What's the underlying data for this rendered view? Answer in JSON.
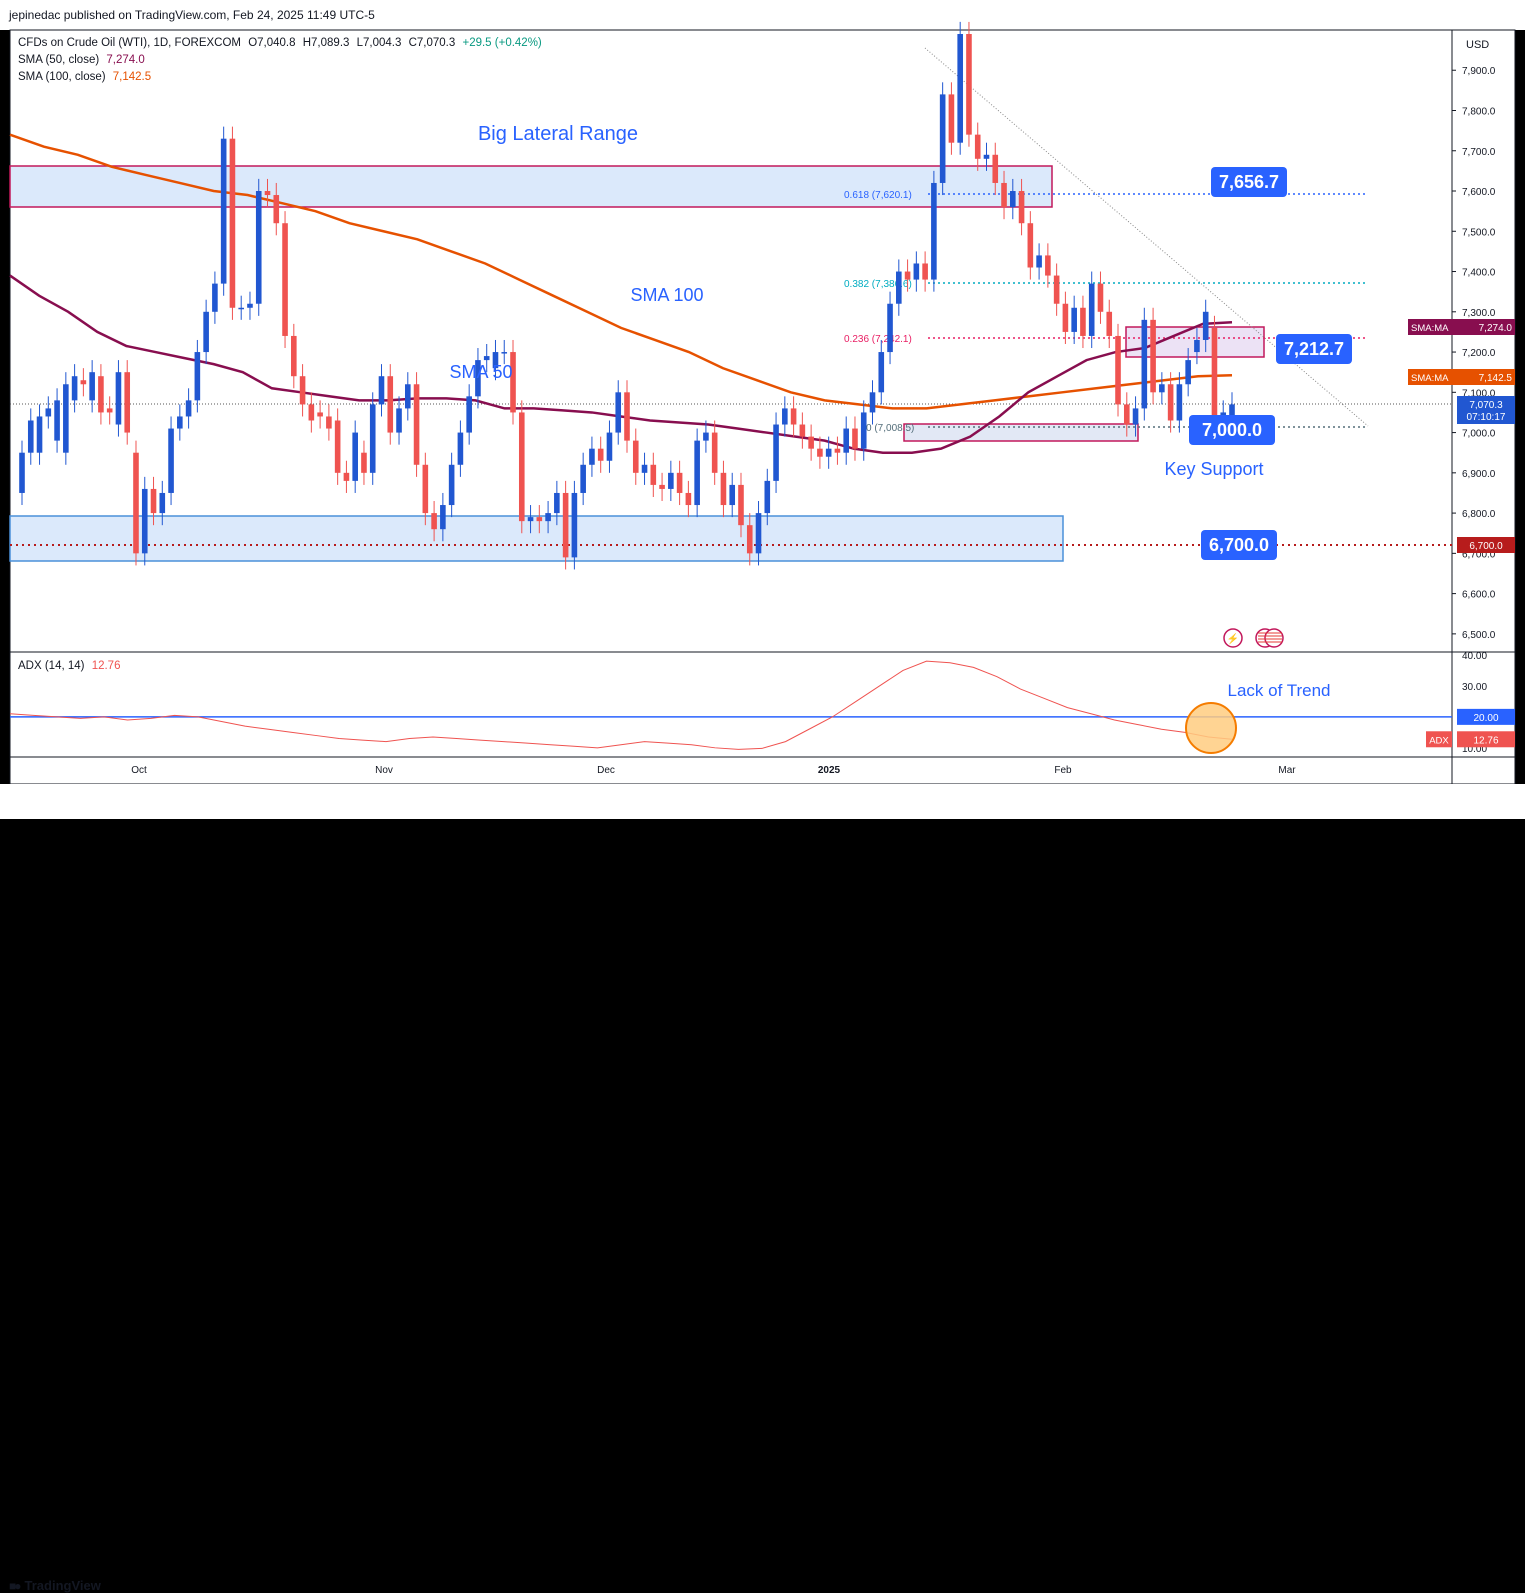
{
  "publisher": "jepinedac published on TradingView.com, Feb 24, 2025 11:49 UTC-5",
  "brand": "TradingView",
  "brand_icon": "tradingview-logo-icon",
  "currency": "USD",
  "legend": {
    "symbol": "CFDs on Crude Oil (WTI), 1D, FOREXCOM",
    "open": "O7,040.8",
    "high": "H7,089.3",
    "low": "L7,004.3",
    "close": "C7,070.3",
    "change": "+29.5 (+0.42%)",
    "sma50_label": "SMA (50, close)",
    "sma50_value": "7,274.0",
    "sma100_label": "SMA (100, close)",
    "sma100_value": "7,142.5"
  },
  "adx_legend": {
    "label": "ADX (14, 14)",
    "value": "12.76"
  },
  "chart_data": {
    "type": "candlestick",
    "price_axis": {
      "min": 6450,
      "max": 7990,
      "ticks": [
        "7,900.0",
        "7,800.0",
        "7,700.0",
        "7,600.0",
        "7,500.0",
        "7,400.0",
        "7,300.0",
        "7,200.0",
        "7,100.0",
        "7,000.0",
        "6,900.0",
        "6,800.0",
        "6,700.0",
        "6,600.0",
        "6,500.0"
      ]
    },
    "time_axis": {
      "labels": [
        "Oct",
        "Nov",
        "Dec",
        "2025",
        "Feb",
        "Mar"
      ]
    },
    "candles": [
      [
        6850,
        6950
      ],
      [
        6950,
        7030
      ],
      [
        6950,
        7040
      ],
      [
        7040,
        7060
      ],
      [
        6980,
        7080
      ],
      [
        6950,
        7120
      ],
      [
        7080,
        7140
      ],
      [
        7130,
        7120
      ],
      [
        7080,
        7150
      ],
      [
        7140,
        7050
      ],
      [
        7060,
        7050
      ],
      [
        7020,
        7150
      ],
      [
        7150,
        7000
      ],
      [
        6950,
        6700
      ],
      [
        6700,
        6860
      ],
      [
        6860,
        6800
      ],
      [
        6800,
        6850
      ],
      [
        6850,
        7010
      ],
      [
        7010,
        7040
      ],
      [
        7040,
        7080
      ],
      [
        7080,
        7200
      ],
      [
        7200,
        7300
      ],
      [
        7300,
        7370
      ],
      [
        7370,
        7730
      ],
      [
        7730,
        7310
      ],
      [
        7310,
        7310
      ],
      [
        7310,
        7320
      ],
      [
        7320,
        7600
      ],
      [
        7600,
        7590
      ],
      [
        7590,
        7520
      ],
      [
        7520,
        7240
      ],
      [
        7240,
        7140
      ],
      [
        7140,
        7070
      ],
      [
        7070,
        7030
      ],
      [
        7050,
        7040
      ],
      [
        7040,
        7010
      ],
      [
        7030,
        6900
      ],
      [
        6900,
        6880
      ],
      [
        6880,
        7000
      ],
      [
        6950,
        6900
      ],
      [
        6900,
        7070
      ],
      [
        7070,
        7140
      ],
      [
        7140,
        7000
      ],
      [
        7000,
        7060
      ],
      [
        7060,
        7120
      ],
      [
        7120,
        6920
      ],
      [
        6920,
        6800
      ],
      [
        6800,
        6760
      ],
      [
        6760,
        6820
      ],
      [
        6820,
        6920
      ],
      [
        6920,
        7000
      ],
      [
        7000,
        7090
      ],
      [
        7090,
        7180
      ],
      [
        7180,
        7190
      ],
      [
        7160,
        7200
      ],
      [
        7200,
        7200
      ],
      [
        7200,
        7050
      ],
      [
        7050,
        6780
      ],
      [
        6780,
        6790
      ],
      [
        6790,
        6780
      ],
      [
        6780,
        6800
      ],
      [
        6800,
        6850
      ],
      [
        6850,
        6690
      ],
      [
        6690,
        6850
      ],
      [
        6850,
        6920
      ],
      [
        6920,
        6960
      ],
      [
        6960,
        6930
      ],
      [
        6930,
        7000
      ],
      [
        7000,
        7100
      ],
      [
        7100,
        6980
      ],
      [
        6980,
        6900
      ],
      [
        6900,
        6920
      ],
      [
        6920,
        6870
      ],
      [
        6870,
        6860
      ],
      [
        6860,
        6900
      ],
      [
        6900,
        6850
      ],
      [
        6850,
        6820
      ],
      [
        6820,
        6980
      ],
      [
        6980,
        7000
      ],
      [
        7000,
        6900
      ],
      [
        6900,
        6820
      ],
      [
        6820,
        6870
      ],
      [
        6870,
        6770
      ],
      [
        6770,
        6700
      ],
      [
        6700,
        6800
      ],
      [
        6800,
        6880
      ],
      [
        6880,
        7020
      ],
      [
        7020,
        7060
      ],
      [
        7060,
        7020
      ],
      [
        7020,
        6990
      ],
      [
        6990,
        6960
      ],
      [
        6960,
        6940
      ],
      [
        6940,
        6960
      ],
      [
        6960,
        6950
      ],
      [
        6950,
        7010
      ],
      [
        7010,
        6960
      ],
      [
        6960,
        7050
      ],
      [
        7050,
        7100
      ],
      [
        7100,
        7200
      ],
      [
        7200,
        7320
      ],
      [
        7320,
        7400
      ],
      [
        7400,
        7380
      ],
      [
        7380,
        7420
      ],
      [
        7420,
        7380
      ],
      [
        7380,
        7620
      ],
      [
        7620,
        7840
      ],
      [
        7840,
        7720
      ],
      [
        7720,
        7990
      ],
      [
        7990,
        7740
      ],
      [
        7740,
        7680
      ],
      [
        7680,
        7690
      ],
      [
        7690,
        7620
      ],
      [
        7620,
        7560
      ],
      [
        7560,
        7600
      ],
      [
        7600,
        7520
      ],
      [
        7520,
        7410
      ],
      [
        7410,
        7440
      ],
      [
        7440,
        7390
      ],
      [
        7390,
        7320
      ],
      [
        7320,
        7250
      ],
      [
        7250,
        7310
      ],
      [
        7310,
        7240
      ],
      [
        7240,
        7370
      ],
      [
        7370,
        7300
      ],
      [
        7300,
        7240
      ],
      [
        7240,
        7070
      ],
      [
        7070,
        7020
      ],
      [
        7020,
        7060
      ],
      [
        7060,
        7280
      ],
      [
        7280,
        7100
      ],
      [
        7100,
        7120
      ],
      [
        7120,
        7030
      ],
      [
        7030,
        7120
      ],
      [
        7120,
        7180
      ],
      [
        7200,
        7230
      ],
      [
        7230,
        7300
      ],
      [
        7260,
        7020
      ],
      [
        7020,
        7050
      ],
      [
        7040,
        7070
      ]
    ],
    "sma50": [
      7390,
      7340,
      7300,
      7250,
      7215,
      7200,
      7185,
      7170,
      7150,
      7110,
      7100,
      7090,
      7080,
      7080,
      7085,
      7085,
      7080,
      7060,
      7060,
      7055,
      7050,
      7040,
      7030,
      7025,
      7020,
      7010,
      7000,
      6990,
      6980,
      6960,
      6950,
      6950,
      6960,
      6990,
      7040,
      7100,
      7140,
      7180,
      7200,
      7210,
      7240,
      7270,
      7274
    ],
    "sma100": [
      7740,
      7710,
      7690,
      7660,
      7640,
      7620,
      7600,
      7590,
      7570,
      7550,
      7520,
      7500,
      7480,
      7450,
      7420,
      7380,
      7340,
      7300,
      7260,
      7230,
      7200,
      7160,
      7130,
      7100,
      7080,
      7070,
      7060,
      7060,
      7070,
      7080,
      7090,
      7100,
      7110,
      7120,
      7130,
      7140,
      7142.5
    ],
    "adx": [
      21,
      20.5,
      20,
      19.5,
      20,
      19,
      19.5,
      20.5,
      20,
      18.5,
      17,
      16,
      15,
      14,
      13,
      12.5,
      12,
      13,
      13.5,
      13,
      12.5,
      12,
      11.5,
      11,
      10.5,
      10,
      11,
      12,
      11.5,
      11,
      10,
      9.5,
      9.8,
      12,
      16,
      20,
      25,
      30,
      35,
      38,
      37.5,
      36,
      33,
      29,
      26,
      23,
      21,
      19,
      17.5,
      16,
      15,
      13.5,
      12.76
    ],
    "adx_axis": {
      "ticks": [
        "40.00",
        "30.00",
        "20.00",
        "10.00"
      ]
    }
  },
  "annotations": {
    "big_range": "Big Lateral Range",
    "sma100": "SMA 100",
    "sma50": "SMA 50",
    "key_support": "Key Support",
    "lack_trend": "Lack of Trend",
    "fib618": "0.618 (7,620.1)",
    "fib382": "0.382 (7,386.6)",
    "fib236": "0.236 (7,242.1)",
    "fib0": "0 (7,008.5)",
    "label_7656": "7,656.7",
    "label_7212": "7,212.7",
    "label_7000": "7,000.0",
    "label_6700": "6,700.0"
  },
  "axis_tags": {
    "sma50_tag": "SMA:MA",
    "sma50_val": "7,274.0",
    "sma100_tag": "SMA:MA",
    "sma100_val": "7,142.5",
    "last_price": "7,070.3",
    "countdown": "07:10:17",
    "level_6700": "6,700.0",
    "adx_20": "20.00",
    "adx_tag": "ADX",
    "adx_val": "12.76"
  },
  "colors": {
    "up": "#2157d1",
    "down": "#ef5350",
    "sma50": "#880e4f",
    "sma100": "#e65100",
    "box_fill": "#dbe9fb",
    "box_border_pink": "#c2185b",
    "label_blue": "#2962ff",
    "adx": "#ef5350"
  }
}
